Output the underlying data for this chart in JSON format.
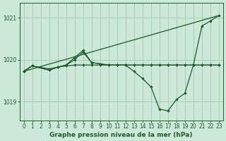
{
  "bg_color": "#cce8d8",
  "grid_color": "#a0c8b0",
  "line_color": "#1a5c2a",
  "xlabel": "Graphe pression niveau de la mer (hPa)",
  "ylim_min": 1018.55,
  "ylim_max": 1021.35,
  "yticks": [
    1019,
    1020,
    1021
  ],
  "xticks": [
    0,
    1,
    2,
    3,
    4,
    5,
    6,
    7,
    8,
    9,
    10,
    11,
    12,
    13,
    14,
    15,
    16,
    17,
    18,
    19,
    20,
    21,
    22,
    23
  ],
  "xlim_min": -0.5,
  "xlim_max": 23.5,
  "line_trend_x": [
    0,
    23
  ],
  "line_trend_y": [
    1019.72,
    1021.05
  ],
  "line_flat_x": [
    0,
    1,
    3,
    4,
    5,
    6,
    7,
    8,
    9,
    10,
    11,
    12,
    13,
    14,
    15,
    16,
    17,
    18,
    19,
    20,
    21,
    22,
    23
  ],
  "line_flat_y": [
    1019.72,
    1019.85,
    1019.78,
    1019.82,
    1019.85,
    1019.87,
    1019.87,
    1019.87,
    1019.87,
    1019.87,
    1019.87,
    1019.87,
    1019.87,
    1019.87,
    1019.87,
    1019.87,
    1019.87,
    1019.87,
    1019.87,
    1019.87,
    1019.87,
    1019.87,
    1019.87
  ],
  "line_peak_x": [
    0,
    1,
    3,
    4,
    5,
    6,
    7,
    8,
    9,
    10,
    11,
    12,
    13,
    14,
    15,
    16,
    17,
    18,
    19,
    20,
    21,
    22,
    23
  ],
  "line_peak_y": [
    1019.72,
    1019.85,
    1019.75,
    1019.82,
    1019.87,
    1020.05,
    1020.22,
    1019.93,
    1019.9,
    1019.87,
    1019.87,
    1019.87,
    1019.87,
    1019.87,
    1019.87,
    1019.87,
    1019.87,
    1019.87,
    1019.87,
    1019.87,
    1019.87,
    1019.87,
    1019.87
  ],
  "line_dip_x": [
    0,
    1,
    3,
    4,
    5,
    6,
    7,
    8,
    9,
    10,
    11,
    12,
    13,
    14,
    15,
    16,
    17,
    18,
    19,
    20,
    21,
    22,
    23
  ],
  "line_dip_y": [
    1019.72,
    1019.85,
    1019.75,
    1019.82,
    1019.87,
    1020.0,
    1020.18,
    1019.93,
    1019.9,
    1019.87,
    1019.87,
    1019.87,
    1019.72,
    1019.55,
    1019.35,
    1018.82,
    1018.78,
    1019.05,
    1019.2,
    1019.87,
    1020.8,
    1020.92,
    1021.05
  ],
  "title_fontsize": 6.5,
  "tick_fontsize": 5.5,
  "linewidth": 0.9,
  "markersize": 2.2
}
